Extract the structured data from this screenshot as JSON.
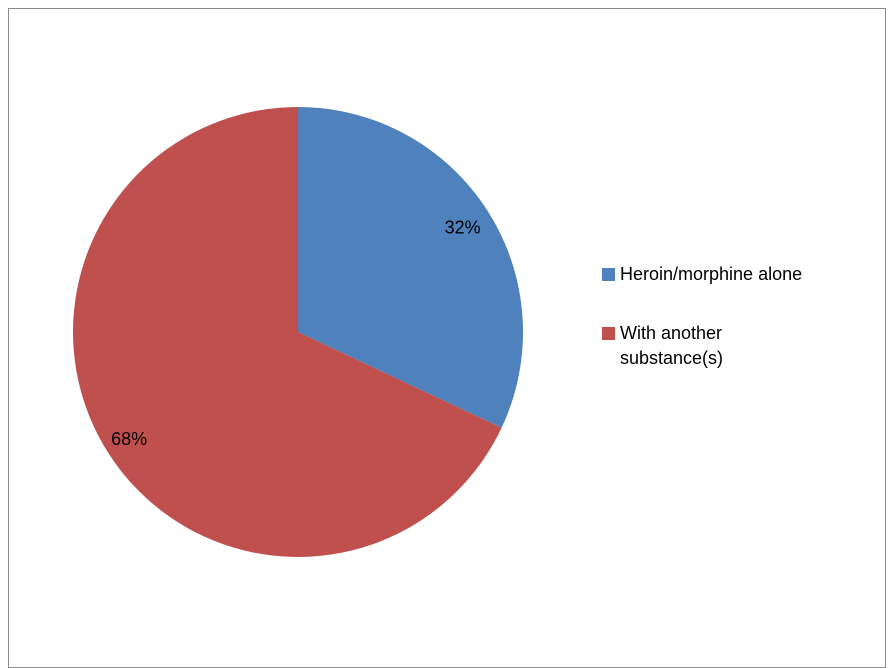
{
  "chart_data": {
    "type": "pie",
    "categories": [
      "Heroin/morphine alone",
      "With another substance(s)"
    ],
    "values": [
      32,
      68
    ],
    "value_labels": [
      "32%",
      "68%"
    ],
    "colors": [
      "#4f81bd",
      "#c0504d"
    ],
    "title": "",
    "legend_position": "right",
    "start_angle": "12 o'clock",
    "direction": "clockwise"
  }
}
